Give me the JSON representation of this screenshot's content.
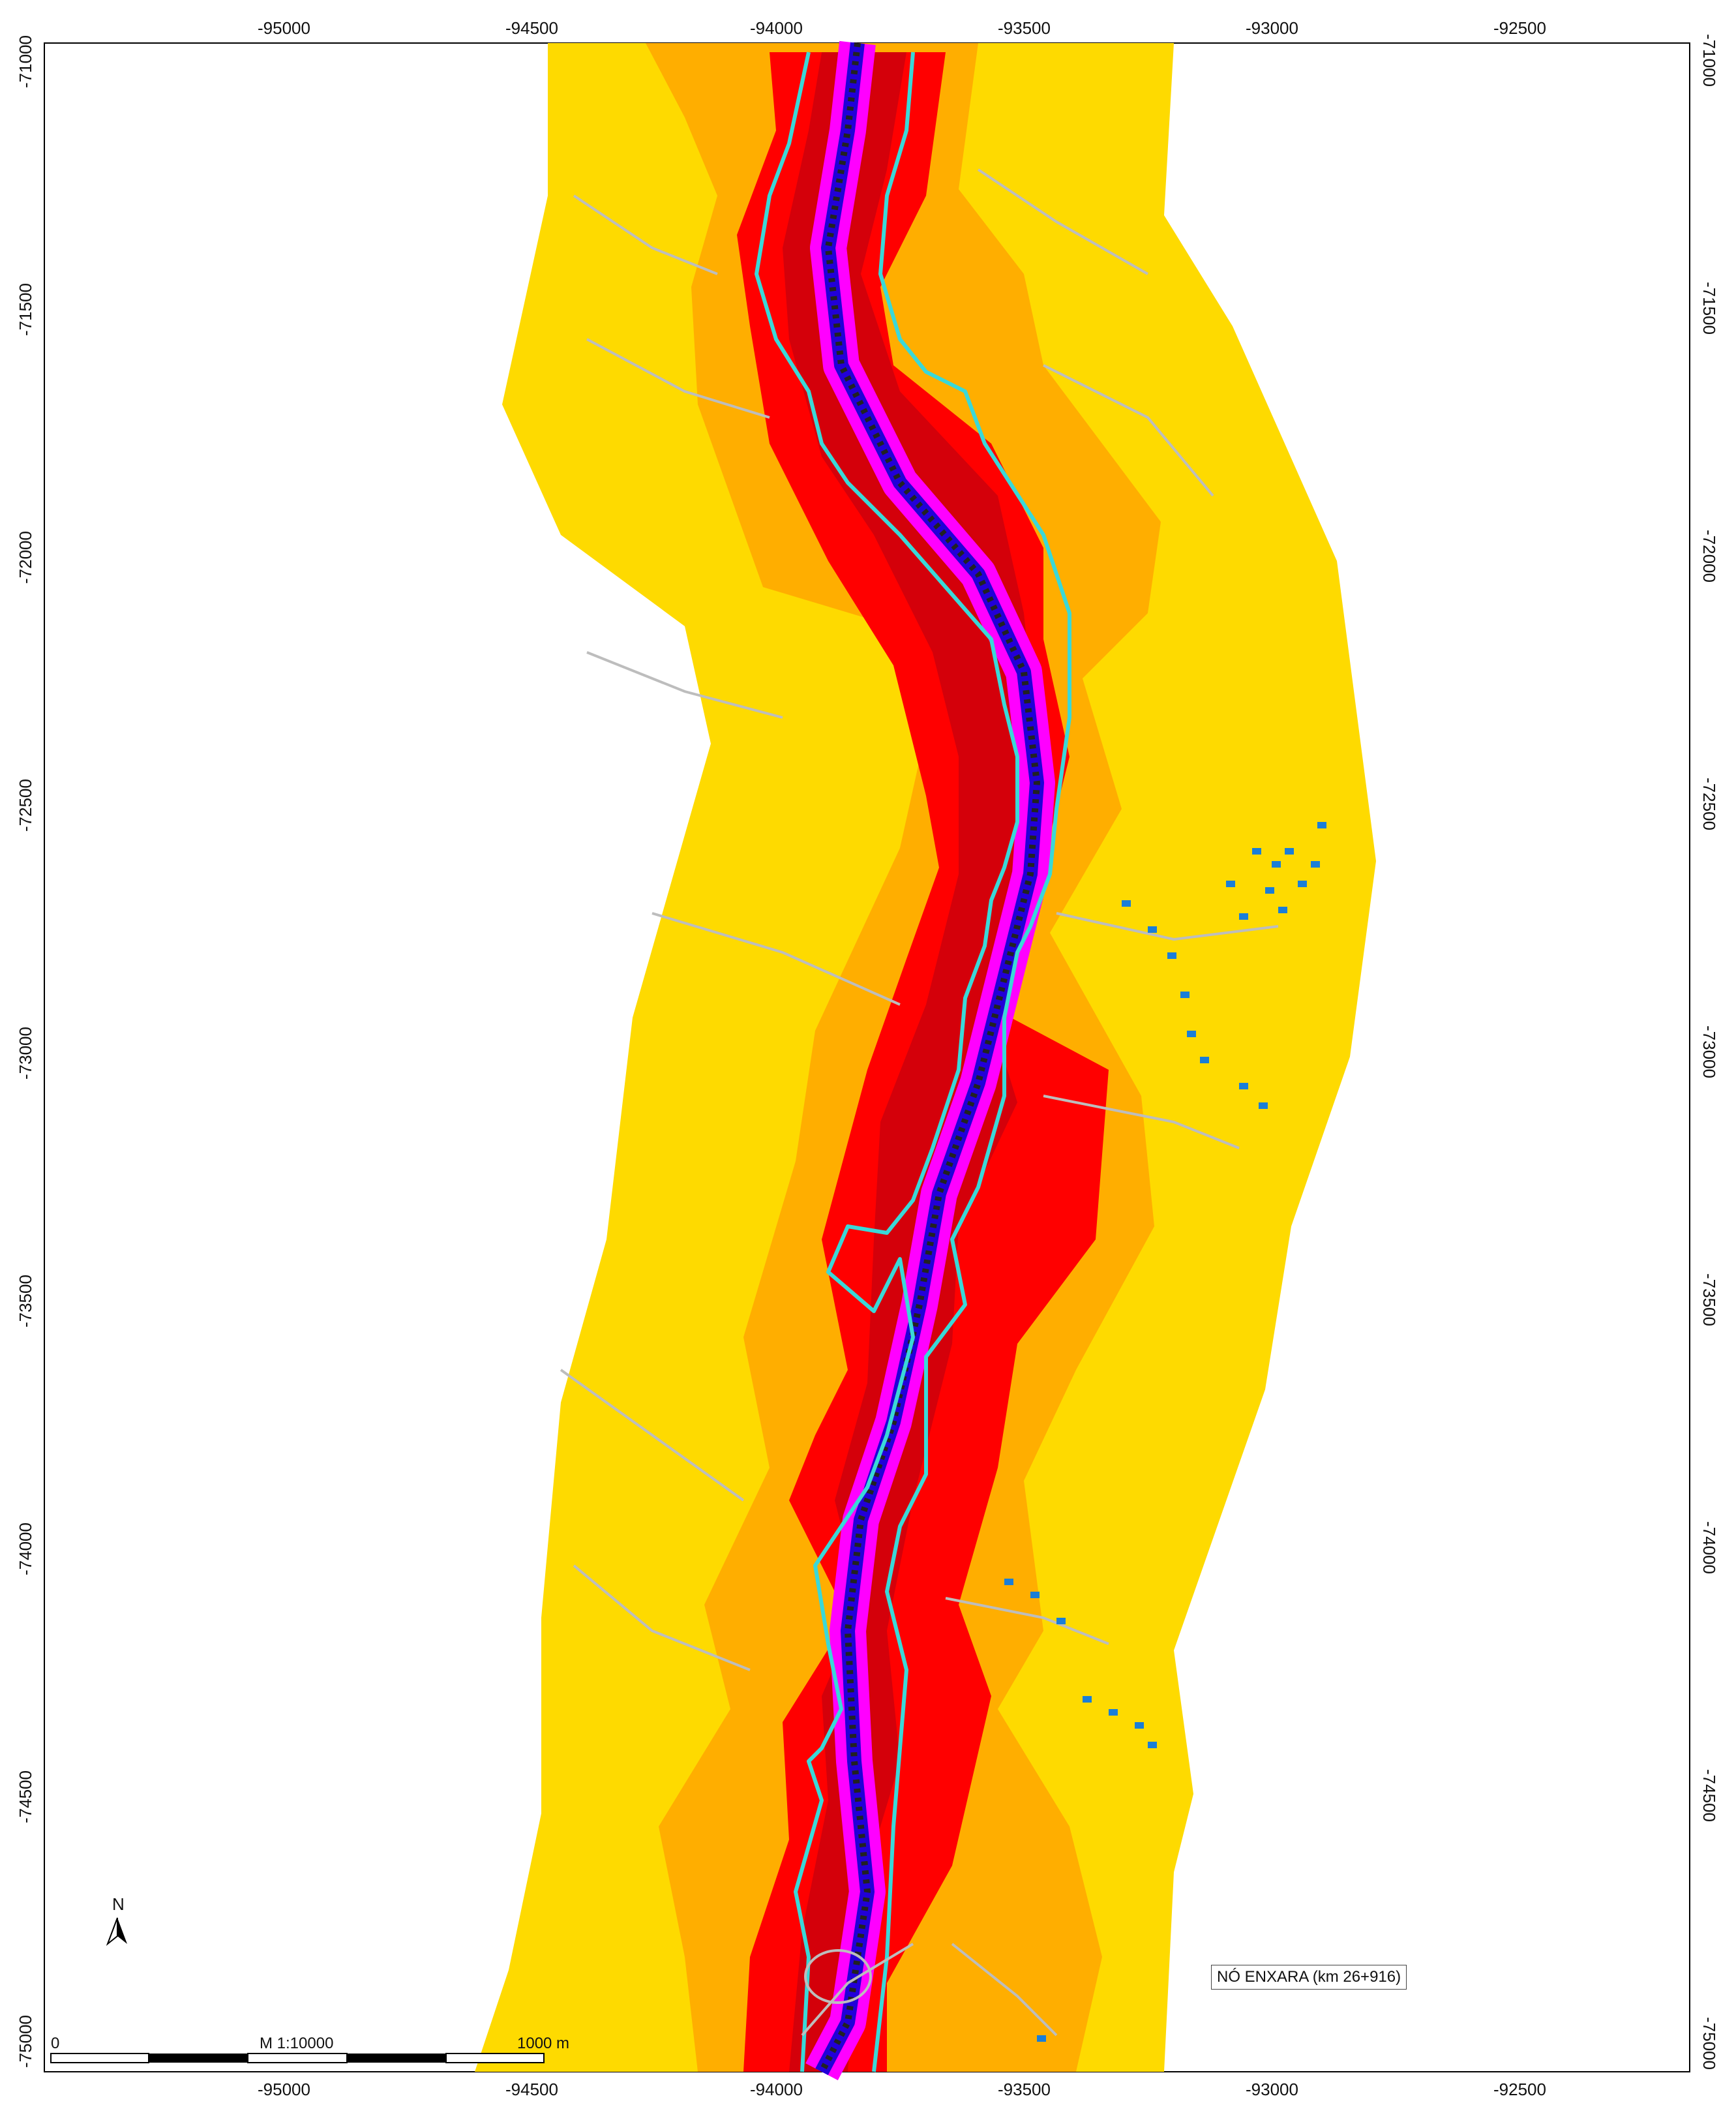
{
  "map": {
    "top_axis_labels": [
      "-95000",
      "-94500",
      "-94000",
      "-93500",
      "-93000",
      "-92500"
    ],
    "bottom_axis_labels": [
      "-95000",
      "-94500",
      "-94000",
      "-93500",
      "-93000",
      "-92500"
    ],
    "left_axis_labels": [
      "-71000",
      "-71500",
      "-72000",
      "-72500",
      "-73000",
      "-73500",
      "-74000",
      "-74500",
      "-75000"
    ],
    "right_axis_labels": [
      "-71000",
      "-71500",
      "-72000",
      "-72500",
      "-73000",
      "-73500",
      "-74000",
      "-74500",
      "-75000"
    ],
    "scale_bar": {
      "start_label": "0",
      "mid_label": "M 1:10000",
      "end_label": "1000 m"
    },
    "north_arrow_label": "N",
    "node_label": "NÓ ENXARA (km 26+916)",
    "colors": {
      "outer_zone": "#FEDA00",
      "mid_zone": "#FFAE00",
      "high_zone": "#FF0000",
      "very_high_zone": "#D4000A",
      "near_road": "#FF00FF",
      "road_core": "#2200D8",
      "contour_line": "#3AD8D8",
      "buildings": "#1A7ED8",
      "minor_roads": "#BDBDBD"
    }
  }
}
